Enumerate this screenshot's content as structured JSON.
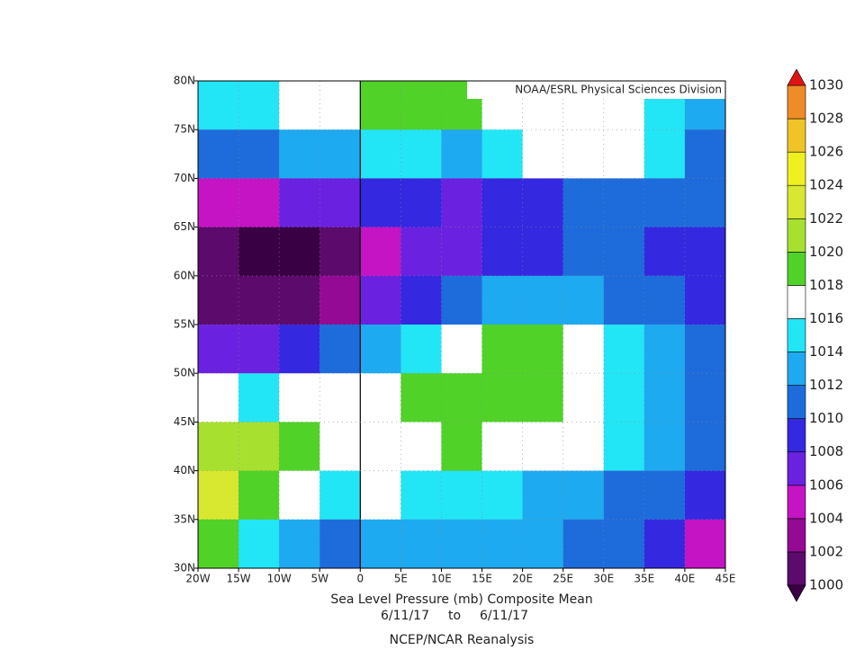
{
  "map": {
    "type": "contour",
    "credit": "NOAA/ESRL Physical Sciences Division",
    "title": "Sea Level Pressure (mb) Composite Mean",
    "date_from": "6/11/17",
    "date_sep": "to",
    "date_to": "6/11/17",
    "source": "NCEP/NCAR Reanalysis",
    "xlim": [
      -20,
      45
    ],
    "ylim": [
      30,
      80
    ],
    "xticks": [
      {
        "value": -20,
        "label": "20W"
      },
      {
        "value": -15,
        "label": "15W"
      },
      {
        "value": -10,
        "label": "10W"
      },
      {
        "value": -5,
        "label": "5W"
      },
      0,
      {
        "value": 5,
        "label": "5E"
      },
      {
        "value": 10,
        "label": "10E"
      },
      {
        "value": 15,
        "label": "15E"
      },
      {
        "value": 20,
        "label": "20E"
      },
      {
        "value": 25,
        "label": "25E"
      },
      {
        "value": 30,
        "label": "30E"
      },
      {
        "value": 35,
        "label": "35E"
      },
      {
        "value": 40,
        "label": "40E"
      },
      {
        "value": 45,
        "label": "45E"
      }
    ],
    "yticks": [
      {
        "value": 80,
        "label": "80N"
      },
      {
        "value": 75,
        "label": "75N"
      },
      {
        "value": 70,
        "label": "70N"
      },
      {
        "value": 65,
        "label": "65N"
      },
      {
        "value": 60,
        "label": "60N"
      },
      {
        "value": 55,
        "label": "55N"
      },
      {
        "value": 50,
        "label": "50N"
      },
      {
        "value": 45,
        "label": "45N"
      },
      {
        "value": 40,
        "label": "40N"
      },
      {
        "value": 35,
        "label": "35N"
      },
      {
        "value": 30,
        "label": "30N"
      }
    ],
    "grid": true,
    "lon": [
      -17.5,
      -12.5,
      -7.5,
      -2.5,
      2.5,
      7.5,
      12.5,
      17.5,
      22.5,
      27.5,
      32.5,
      37.5,
      42.5
    ],
    "lat": [
      77.5,
      72.5,
      67.5,
      62.5,
      57.5,
      52.5,
      47.5,
      42.5,
      37.5,
      32.5
    ],
    "values": [
      [
        1014.5,
        1015,
        1017,
        1017,
        1018,
        1018,
        1018,
        1017.5,
        1017,
        1017,
        1016.5,
        1015,
        1012
      ],
      [
        1011,
        1011,
        1012,
        1013,
        1015,
        1014,
        1013,
        1014,
        1016,
        1017,
        1016,
        1014,
        1010
      ],
      [
        1005,
        1004,
        1006,
        1007,
        1008,
        1008,
        1007,
        1008,
        1009,
        1010,
        1011,
        1011,
        1010
      ],
      [
        1000,
        999,
        999,
        1001,
        1004,
        1006,
        1007,
        1008,
        1009,
        1010,
        1010,
        1009,
        1008
      ],
      [
        1001,
        1000,
        1001,
        1003,
        1006,
        1008,
        1011,
        1013,
        1013,
        1012,
        1011,
        1010,
        1009
      ],
      [
        1007,
        1007,
        1008,
        1010,
        1013,
        1015,
        1017,
        1018,
        1018,
        1017,
        1015,
        1013,
        1011
      ],
      [
        1016,
        1015,
        1016,
        1017,
        1017,
        1018,
        1019,
        1019,
        1018,
        1017,
        1015,
        1013,
        1011
      ],
      [
        1021,
        1021,
        1019,
        1017,
        1017,
        1017,
        1018,
        1017,
        1017,
        1016,
        1014,
        1012,
        1010
      ],
      [
        1022,
        1019,
        1017,
        1015,
        1016,
        1015,
        1015,
        1014,
        1013,
        1012,
        1011,
        1010,
        1008
      ],
      [
        1019,
        1015,
        1012,
        1011,
        1012,
        1012,
        1013,
        1013,
        1012,
        1011,
        1010,
        1008,
        1005
      ]
    ],
    "colorbar": {
      "levels": [
        1000,
        1002,
        1004,
        1006,
        1008,
        1010,
        1012,
        1014,
        1016,
        1018,
        1020,
        1022,
        1024,
        1026,
        1028,
        1030
      ],
      "colors": [
        "#3a0044",
        "#5c0a6c",
        "#940a94",
        "#c414c4",
        "#6a22e0",
        "#3428e0",
        "#1e6cdc",
        "#1eaaf0",
        "#22e6f6",
        "#ffffff",
        "#50d228",
        "#a8e030",
        "#d8e830",
        "#f0f020",
        "#f0c428",
        "#f08c28",
        "#e01414"
      ]
    }
  }
}
